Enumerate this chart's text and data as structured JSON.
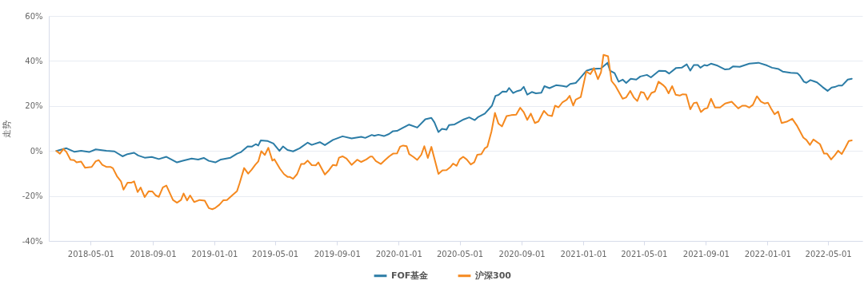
{
  "chart_data": {
    "type": "line",
    "ylabel": "走势",
    "xlim": [
      "2018-02-07",
      "2022-07-08"
    ],
    "ylim": [
      -40,
      60
    ],
    "xticks": [
      "2018-05-01",
      "2018-09-01",
      "2019-01-01",
      "2019-05-01",
      "2019-09-01",
      "2020-01-01",
      "2020-05-01",
      "2020-09-01",
      "2021-01-01",
      "2021-05-01",
      "2021-09-01",
      "2022-01-01",
      "2022-05-01"
    ],
    "yticks": [
      {
        "value": -40,
        "label": "-40%"
      },
      {
        "value": -20,
        "label": "-20%"
      },
      {
        "value": 0,
        "label": "0%"
      },
      {
        "value": 20,
        "label": "20%"
      },
      {
        "value": 40,
        "label": "40%"
      },
      {
        "value": 60,
        "label": "60%"
      }
    ],
    "grid": "y",
    "legend": "bottom",
    "series": [
      {
        "name": "FOF基金",
        "color": "#2b7ca6",
        "x": [
          "2018-02-22",
          "2018-03-14",
          "2018-03-30",
          "2018-04-12",
          "2018-04-28",
          "2018-05-11",
          "2018-06-01",
          "2018-06-17",
          "2018-07-03",
          "2018-07-13",
          "2018-07-26",
          "2018-08-03",
          "2018-08-16",
          "2018-08-30",
          "2018-09-13",
          "2018-09-28",
          "2018-10-19",
          "2018-11-01",
          "2018-11-17",
          "2018-11-30",
          "2018-12-11",
          "2018-12-21",
          "2019-01-03",
          "2019-01-14",
          "2019-02-02",
          "2019-02-15",
          "2019-02-23",
          "2019-03-08",
          "2019-03-16",
          "2019-03-24",
          "2019-03-29",
          "2019-04-03",
          "2019-04-17",
          "2019-04-28",
          "2019-05-10",
          "2019-05-17",
          "2019-05-26",
          "2019-06-06",
          "2019-06-19",
          "2019-07-05",
          "2019-07-13",
          "2019-07-29",
          "2019-08-08",
          "2019-08-24",
          "2019-09-12",
          "2019-09-30",
          "2019-10-19",
          "2019-10-27",
          "2019-11-09",
          "2019-11-14",
          "2019-11-22",
          "2019-12-03",
          "2019-12-13",
          "2019-12-21",
          "2019-12-29",
          "2020-01-09",
          "2020-01-22",
          "2020-02-07",
          "2020-02-23",
          "2020-03-06",
          "2020-03-12",
          "2020-03-20",
          "2020-03-27",
          "2020-04-05",
          "2020-04-10",
          "2020-04-21",
          "2020-04-29",
          "2020-05-09",
          "2020-05-20",
          "2020-05-31",
          "2020-06-07",
          "2020-06-20",
          "2020-07-04",
          "2020-07-11",
          "2020-07-17",
          "2020-07-25",
          "2020-08-02",
          "2020-08-07",
          "2020-08-15",
          "2020-08-23",
          "2020-08-30",
          "2020-09-05",
          "2020-09-12",
          "2020-09-21",
          "2020-09-29",
          "2020-10-10",
          "2020-10-16",
          "2020-10-26",
          "2020-11-08",
          "2020-11-21",
          "2020-11-29",
          "2020-12-06",
          "2020-12-17",
          "2020-12-23",
          "2021-01-07",
          "2021-01-18",
          "2021-02-05",
          "2021-02-18",
          "2021-02-23",
          "2021-03-04",
          "2021-03-12",
          "2021-03-20",
          "2021-03-27",
          "2021-04-05",
          "2021-04-16",
          "2021-04-24",
          "2021-05-07",
          "2021-05-15",
          "2021-05-31",
          "2021-06-13",
          "2021-06-20",
          "2021-07-04",
          "2021-07-15",
          "2021-07-25",
          "2021-08-01",
          "2021-08-08",
          "2021-08-16",
          "2021-08-21",
          "2021-08-29",
          "2021-09-03",
          "2021-09-11",
          "2021-09-24",
          "2021-10-09",
          "2021-10-17",
          "2021-10-25",
          "2021-11-07",
          "2021-11-26",
          "2021-12-14",
          "2021-12-31",
          "2022-01-10",
          "2022-01-23",
          "2022-01-31",
          "2022-02-16",
          "2022-03-01",
          "2022-03-06",
          "2022-03-14",
          "2022-03-19",
          "2022-03-27",
          "2022-04-09",
          "2022-04-20",
          "2022-04-30",
          "2022-05-08",
          "2022-05-14",
          "2022-05-22",
          "2022-05-29",
          "2022-06-09",
          "2022-06-17"
        ],
        "values": [
          0,
          1.2,
          -0.4,
          0.1,
          -0.5,
          0.7,
          0.1,
          -0.2,
          -2.4,
          -1.4,
          -0.8,
          -2.0,
          -3.0,
          -2.7,
          -3.6,
          -2.6,
          -5.1,
          -4.3,
          -3.4,
          -3.8,
          -3.1,
          -4.4,
          -5.1,
          -3.8,
          -3.0,
          -1.2,
          -0.5,
          2.0,
          1.9,
          3.0,
          2.4,
          4.7,
          4.4,
          3.3,
          0,
          2.0,
          0.4,
          -0.2,
          1.2,
          3.7,
          2.7,
          3.9,
          2.6,
          4.9,
          6.5,
          5.6,
          6.3,
          5.8,
          7.1,
          6.7,
          7.2,
          6.6,
          7.5,
          8.8,
          8.9,
          10.2,
          11.7,
          10.4,
          14.1,
          14.7,
          12.7,
          8.4,
          9.8,
          9.5,
          11.5,
          11.8,
          12.8,
          14.0,
          14.9,
          13.7,
          15.1,
          16.6,
          20.1,
          24.5,
          24.9,
          26.4,
          26.3,
          28.0,
          25.7,
          26.6,
          27.0,
          28.5,
          25.0,
          26.2,
          25.6,
          25.9,
          28.8,
          27.9,
          29.2,
          28.9,
          28.5,
          29.8,
          30.2,
          31.7,
          35.6,
          36.4,
          36.7,
          39.2,
          35.7,
          34.6,
          30.8,
          31.7,
          30.2,
          32.1,
          31.7,
          33.1,
          33.8,
          32.7,
          35.6,
          35.5,
          34.4,
          36.9,
          37.0,
          38.5,
          35.7,
          38.2,
          38.2,
          37.0,
          38.2,
          37.9,
          38.8,
          37.9,
          36.2,
          36.4,
          37.6,
          37.4,
          38.8,
          39.2,
          38.0,
          37.0,
          36.4,
          35.3,
          34.7,
          34.6,
          33.5,
          30.8,
          30.3,
          31.5,
          30.5,
          28.4,
          26.7,
          28.2,
          28.4,
          29.1,
          29.1,
          31.7,
          32.1
        ]
      },
      {
        "name": "沪深300",
        "color": "#f5891f",
        "x": [
          "2018-02-22",
          "2018-03-01",
          "2018-03-08",
          "2018-03-14",
          "2018-03-22",
          "2018-03-29",
          "2018-04-03",
          "2018-04-12",
          "2018-04-20",
          "2018-05-03",
          "2018-05-11",
          "2018-05-17",
          "2018-05-24",
          "2018-06-01",
          "2018-06-09",
          "2018-06-14",
          "2018-06-22",
          "2018-06-30",
          "2018-07-05",
          "2018-07-13",
          "2018-07-21",
          "2018-07-26",
          "2018-08-02",
          "2018-08-08",
          "2018-08-16",
          "2018-08-24",
          "2018-08-31",
          "2018-09-07",
          "2018-09-13",
          "2018-09-21",
          "2018-09-28",
          "2018-10-11",
          "2018-10-19",
          "2018-10-27",
          "2018-11-01",
          "2018-11-08",
          "2018-11-14",
          "2018-11-22",
          "2018-12-03",
          "2018-12-13",
          "2018-12-21",
          "2018-12-28",
          "2019-01-03",
          "2019-01-11",
          "2019-01-19",
          "2019-01-26",
          "2019-02-02",
          "2019-02-15",
          "2019-02-20",
          "2019-03-01",
          "2019-03-09",
          "2019-03-16",
          "2019-03-23",
          "2019-03-29",
          "2019-04-04",
          "2019-04-11",
          "2019-04-18",
          "2019-04-26",
          "2019-04-30",
          "2019-05-11",
          "2019-05-19",
          "2019-05-26",
          "2019-05-30",
          "2019-06-06",
          "2019-06-14",
          "2019-06-22",
          "2019-06-28",
          "2019-07-05",
          "2019-07-13",
          "2019-07-21",
          "2019-07-26",
          "2019-08-08",
          "2019-08-16",
          "2019-08-24",
          "2019-08-31",
          "2019-09-05",
          "2019-09-12",
          "2019-09-20",
          "2019-09-30",
          "2019-10-11",
          "2019-10-19",
          "2019-10-29",
          "2019-11-06",
          "2019-11-10",
          "2019-11-17",
          "2019-11-27",
          "2019-12-05",
          "2019-12-13",
          "2019-12-21",
          "2019-12-29",
          "2020-01-04",
          "2020-01-10",
          "2020-01-17",
          "2020-01-22",
          "2020-01-30",
          "2020-02-07",
          "2020-02-15",
          "2020-02-21",
          "2020-02-28",
          "2020-03-06",
          "2020-03-20",
          "2020-03-28",
          "2020-04-05",
          "2020-04-13",
          "2020-04-18",
          "2020-04-25",
          "2020-05-01",
          "2020-05-08",
          "2020-05-15",
          "2020-05-23",
          "2020-05-30",
          "2020-06-05",
          "2020-06-13",
          "2020-06-20",
          "2020-06-25",
          "2020-07-03",
          "2020-07-10",
          "2020-07-17",
          "2020-07-24",
          "2020-08-02",
          "2020-08-11",
          "2020-08-21",
          "2020-08-29",
          "2020-09-05",
          "2020-09-12",
          "2020-09-19",
          "2020-09-27",
          "2020-10-04",
          "2020-10-15",
          "2020-10-23",
          "2020-10-31",
          "2020-11-06",
          "2020-11-13",
          "2020-11-21",
          "2020-11-29",
          "2020-12-05",
          "2020-12-12",
          "2020-12-17",
          "2020-12-27",
          "2021-01-07",
          "2021-01-15",
          "2021-01-22",
          "2021-01-30",
          "2021-02-05",
          "2021-02-10",
          "2021-02-19",
          "2021-02-26",
          "2021-03-06",
          "2021-03-20",
          "2021-03-27",
          "2021-04-04",
          "2021-04-11",
          "2021-04-18",
          "2021-04-25",
          "2021-05-01",
          "2021-05-08",
          "2021-05-16",
          "2021-05-23",
          "2021-05-30",
          "2021-06-08",
          "2021-06-13",
          "2021-06-19",
          "2021-06-26",
          "2021-07-03",
          "2021-07-11",
          "2021-07-17",
          "2021-07-24",
          "2021-08-01",
          "2021-08-08",
          "2021-08-14",
          "2021-08-22",
          "2021-08-29",
          "2021-09-04",
          "2021-09-11",
          "2021-09-19",
          "2021-09-29",
          "2021-10-09",
          "2021-10-22",
          "2021-11-04",
          "2021-11-12",
          "2021-11-19",
          "2021-11-26",
          "2021-12-03",
          "2021-12-11",
          "2021-12-19",
          "2021-12-26",
          "2022-01-02",
          "2022-01-08",
          "2022-01-15",
          "2022-01-22",
          "2022-01-29",
          "2022-02-08",
          "2022-02-19",
          "2022-03-01",
          "2022-03-13",
          "2022-03-19",
          "2022-03-26",
          "2022-04-02",
          "2022-04-15",
          "2022-04-23",
          "2022-04-29",
          "2022-05-07",
          "2022-05-14",
          "2022-05-21",
          "2022-05-28",
          "2022-06-04",
          "2022-06-11",
          "2022-06-17"
        ],
        "values": [
          0,
          -1.2,
          0.9,
          -0.5,
          -3.9,
          -4.1,
          -5.1,
          -4.7,
          -7.5,
          -7.1,
          -4.6,
          -4.1,
          -6.2,
          -7.1,
          -7.1,
          -7.7,
          -11.2,
          -13.5,
          -17.2,
          -14.1,
          -14.1,
          -13.5,
          -18.3,
          -16.3,
          -20.5,
          -17.9,
          -18.0,
          -19.8,
          -20.4,
          -16.2,
          -15.4,
          -21.8,
          -23.0,
          -21.8,
          -18.9,
          -22.0,
          -19.8,
          -22.7,
          -21.8,
          -22.1,
          -25.4,
          -25.9,
          -25.3,
          -23.9,
          -21.9,
          -21.8,
          -20.4,
          -17.8,
          -14.4,
          -7.6,
          -10.1,
          -8.3,
          -6.2,
          -4.7,
          -0.1,
          -1.8,
          1.4,
          -4.3,
          -3.7,
          -7.9,
          -10.3,
          -11.5,
          -11.5,
          -12.4,
          -10.3,
          -5.8,
          -5.8,
          -4.3,
          -6.3,
          -6.4,
          -5.1,
          -10.5,
          -8.6,
          -6.2,
          -6.5,
          -3.0,
          -2.4,
          -3.4,
          -6.2,
          -3.9,
          -4.9,
          -3.8,
          -2.5,
          -2.5,
          -4.5,
          -5.8,
          -4.1,
          -2.5,
          -1.2,
          -1.1,
          1.9,
          2.4,
          2.1,
          -1.4,
          -2.6,
          -4.0,
          -1.7,
          2.1,
          -3.1,
          1.8,
          -10.2,
          -8.6,
          -8.5,
          -7.1,
          -5.6,
          -6.6,
          -3.8,
          -2.6,
          -3.8,
          -6.0,
          -5.0,
          -1.7,
          -1.4,
          1.2,
          1.9,
          8.6,
          16.9,
          12.1,
          10.9,
          15.5,
          15.9,
          16.1,
          19.2,
          17.2,
          13.8,
          16.6,
          12.4,
          13.1,
          17.8,
          15.9,
          15.5,
          20.1,
          19.4,
          21.7,
          22.7,
          24.5,
          20.2,
          22.8,
          24.0,
          35.3,
          34.1,
          36.8,
          31.9,
          34.9,
          42.7,
          42.1,
          31.1,
          28.8,
          23.2,
          23.8,
          26.7,
          23.8,
          22.2,
          26.2,
          25.9,
          22.8,
          25.8,
          26.4,
          30.8,
          29.3,
          28.2,
          25.6,
          28.8,
          25.0,
          24.6,
          25.2,
          25.1,
          18.5,
          21.3,
          21.5,
          17.3,
          18.7,
          19.1,
          23.2,
          19.3,
          19.3,
          21.1,
          21.9,
          18.9,
          20.1,
          20.1,
          19.3,
          20.5,
          24.3,
          21.9,
          21.1,
          21.4,
          18.9,
          16.3,
          17.5,
          12.4,
          13.0,
          14.3,
          11.0,
          5.9,
          4.9,
          2.7,
          5.1,
          3.0,
          -1.2,
          -1.2,
          -3.8,
          -2.0,
          0.1,
          -1.4,
          1.4,
          4.4,
          4.7
        ]
      }
    ]
  }
}
